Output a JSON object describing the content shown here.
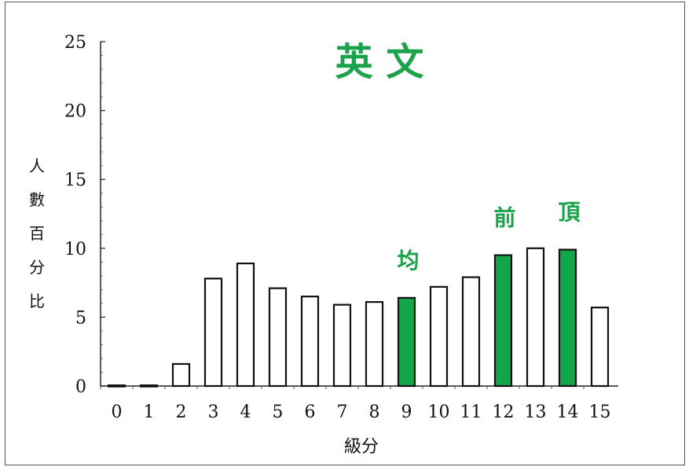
{
  "chart_data": {
    "type": "bar",
    "title": "英 文",
    "xlabel": "級分",
    "ylabel": "人數百分比",
    "ylim": [
      0,
      25
    ],
    "yticks": [
      0,
      5,
      10,
      15,
      20,
      25
    ],
    "categories": [
      "0",
      "1",
      "2",
      "3",
      "4",
      "5",
      "6",
      "7",
      "8",
      "9",
      "10",
      "11",
      "12",
      "13",
      "14",
      "15"
    ],
    "values": [
      0.05,
      0.05,
      1.6,
      7.8,
      8.9,
      7.1,
      6.5,
      5.9,
      6.1,
      6.4,
      7.2,
      7.9,
      9.5,
      10.0,
      9.9,
      5.7
    ],
    "highlighted": [
      {
        "category": "9",
        "label": "均"
      },
      {
        "category": "12",
        "label": "前"
      },
      {
        "category": "14",
        "label": "頂"
      }
    ],
    "colors": {
      "title": "#1aa34a",
      "highlight_bar": "#12a54a",
      "bar_fill": "#ffffff",
      "bar_stroke": "#111111"
    },
    "grid": false
  }
}
